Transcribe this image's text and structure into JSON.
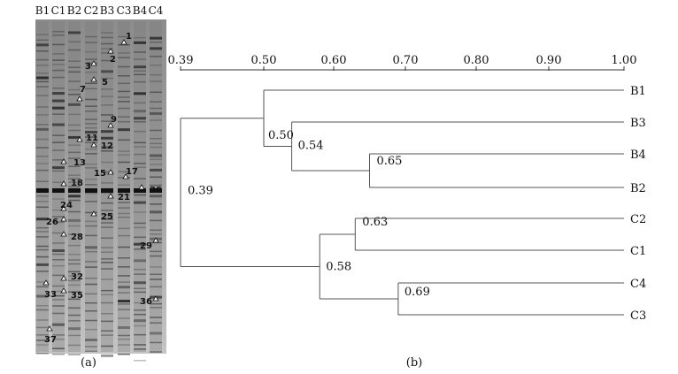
{
  "gel": {
    "lanes": [
      "B1",
      "C1",
      "B2",
      "C2",
      "B3",
      "C3",
      "B4",
      "C4"
    ],
    "band_markers": [
      "1",
      "2",
      "3",
      "5",
      "7",
      "9",
      "11",
      "12",
      "13",
      "15",
      "17",
      "18",
      "20",
      "21",
      "24",
      "25",
      "26",
      "28",
      "29",
      "32",
      "33",
      "35",
      "36",
      "37"
    ],
    "caption": "(a)"
  },
  "dendrogram": {
    "axis_ticks": [
      "0.39",
      "0.50",
      "0.60",
      "0.70",
      "0.80",
      "0.90",
      "1.00"
    ],
    "axis_values": [
      0.39,
      0.5,
      0.6,
      0.7,
      0.8,
      0.9,
      1.0
    ],
    "leaves": [
      "B1",
      "B3",
      "B4",
      "B2",
      "C2",
      "C1",
      "C4",
      "C3"
    ],
    "nodes": [
      {
        "label": "0.39",
        "similarity": 0.39
      },
      {
        "label": "0.50",
        "similarity": 0.5
      },
      {
        "label": "0.54",
        "similarity": 0.54
      },
      {
        "label": "0.65",
        "similarity": 0.65
      },
      {
        "label": "0.58",
        "similarity": 0.58
      },
      {
        "label": "0.63",
        "similarity": 0.63
      },
      {
        "label": "0.69",
        "similarity": 0.69
      }
    ],
    "caption": "(b)"
  },
  "colors": {
    "gel_bg": "#9a9a9a",
    "ink": "#111111"
  }
}
